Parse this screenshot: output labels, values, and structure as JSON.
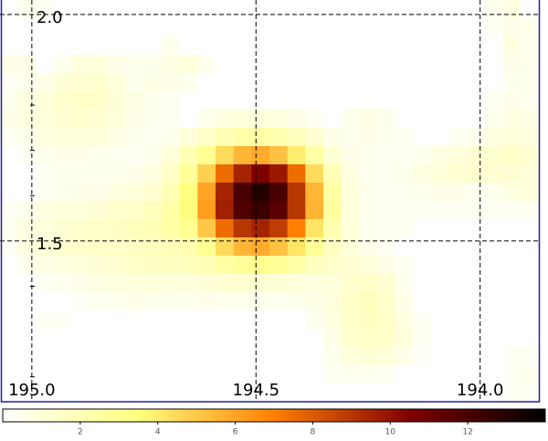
{
  "chart_data": {
    "type": "heatmap",
    "colormap": "afmhot_r",
    "clim": [
      0,
      14
    ],
    "xlim": [
      195.071,
      193.869
    ],
    "ylim": [
      2.032,
      1.145
    ],
    "xticks": [
      {
        "value": 195,
        "label": "195.0"
      },
      {
        "value": 194.5,
        "label": "194.5"
      },
      {
        "value": 194,
        "label": "194.0"
      }
    ],
    "yticks": [
      {
        "value": 2,
        "label": "2.0"
      },
      {
        "value": 1.5,
        "label": "1.5"
      }
    ],
    "yminorticks": [
      1.2,
      1.4,
      1.6,
      1.7,
      1.8
    ],
    "grid": true,
    "colorbar_ticks": [
      2,
      4,
      6,
      8,
      10,
      12
    ],
    "z": [
      [
        0,
        0.5,
        0.3,
        0,
        0,
        0,
        0,
        0,
        0,
        0,
        0,
        0,
        0,
        0,
        0,
        0,
        0,
        0,
        0,
        0,
        0,
        0,
        0,
        0,
        0,
        0,
        0,
        0.5,
        0.8,
        0
      ],
      [
        0,
        0,
        0,
        0,
        0,
        0,
        0,
        0,
        0,
        0,
        0,
        0,
        0,
        0,
        0,
        0,
        0,
        0,
        0,
        0,
        0,
        0,
        0,
        0,
        0,
        0,
        0,
        0.3,
        0.6,
        0.5
      ],
      [
        0,
        0,
        0,
        0,
        0,
        0,
        0,
        0,
        0,
        0.5,
        0,
        0,
        0,
        0,
        0,
        0,
        0,
        0,
        0,
        0,
        0,
        0,
        0,
        0,
        0,
        0,
        0,
        0,
        0.8,
        0.5
      ],
      [
        0.6,
        0.6,
        0,
        0.5,
        0.9,
        1,
        0.6,
        0.5,
        0.5,
        0.8,
        1,
        0.5,
        0,
        0,
        0,
        0,
        0,
        0,
        0,
        0,
        0,
        0,
        0,
        0,
        0,
        0,
        0,
        0,
        0.6,
        0.5
      ],
      [
        0.3,
        0.5,
        0.6,
        1.1,
        1.2,
        1.3,
        1,
        0.5,
        0.7,
        0.6,
        0.5,
        0,
        0,
        0,
        0,
        0,
        0,
        0,
        0,
        0,
        0,
        0,
        0,
        0,
        0,
        0,
        0,
        0,
        0.5,
        0.4
      ],
      [
        0.5,
        0.8,
        1,
        1.3,
        1.5,
        1.4,
        1.1,
        0.7,
        0.5,
        0.3,
        0,
        0,
        0,
        0,
        0,
        0,
        0,
        0,
        0,
        0,
        0,
        0,
        0,
        0,
        0,
        0,
        0,
        0.3,
        0.6,
        0.4
      ],
      [
        0.6,
        0.8,
        1,
        1.2,
        1.3,
        1.2,
        1,
        0.6,
        0.4,
        0.3,
        0,
        0.5,
        0.8,
        0.9,
        1,
        0.8,
        0.6,
        0.3,
        0,
        0.5,
        0.7,
        0.5,
        0,
        0,
        0,
        0,
        0,
        0.5,
        0.8,
        0.7
      ],
      [
        0.3,
        0.5,
        0.8,
        0.9,
        1,
        0.9,
        0.7,
        0.5,
        0.3,
        0.4,
        1,
        1.5,
        2,
        2.3,
        2.4,
        2.2,
        1.8,
        1.2,
        0.6,
        0.5,
        0.6,
        0.4,
        0.3,
        0,
        0,
        0.3,
        0.5,
        0.8,
        1,
        0.8
      ],
      [
        0,
        0.3,
        0.5,
        0.6,
        0.6,
        0.5,
        0.4,
        0.3,
        0.5,
        1,
        2,
        3,
        4.5,
        5.5,
        5.8,
        5.2,
        4,
        2.5,
        1.2,
        0.6,
        0.5,
        0.3,
        0.3,
        0.5,
        0.8,
        1,
        1.2,
        1.3,
        1.5,
        1.2
      ],
      [
        0,
        0,
        0.3,
        0.4,
        0.4,
        0.4,
        0.5,
        0.6,
        0.8,
        1.5,
        2.8,
        4.8,
        7.5,
        9.5,
        10.5,
        9.8,
        7.5,
        4.5,
        2,
        0.8,
        0.4,
        0.3,
        0.5,
        0.8,
        1,
        1.2,
        1.3,
        1.2,
        1.2,
        1
      ],
      [
        0,
        0,
        0.3,
        0.5,
        0.6,
        0.6,
        0.8,
        1,
        1.2,
        2,
        3.5,
        6,
        9.5,
        12,
        13,
        12,
        9,
        5.5,
        2.5,
        1,
        0.5,
        0.3,
        0.4,
        0.5,
        0.6,
        0.6,
        0.5,
        0.5,
        0.8,
        1
      ],
      [
        0.3,
        0.5,
        0.8,
        1,
        1,
        1.2,
        1.4,
        1.5,
        1.8,
        2.4,
        3.6,
        6.2,
        9.6,
        11.8,
        12.4,
        11.5,
        9,
        5.6,
        2.6,
        1,
        0.4,
        0.3,
        0.3,
        0.3,
        0.3,
        0.3,
        0.3,
        0.3,
        0.3,
        0.3
      ],
      [
        0.5,
        0.8,
        1,
        1.2,
        1.3,
        1.5,
        1.6,
        1.8,
        2,
        2.4,
        3,
        5,
        7.5,
        9,
        9.5,
        8.8,
        7,
        4.2,
        2.2,
        1,
        0.5,
        0.3,
        0.3,
        0,
        0,
        0,
        0,
        0,
        0,
        0
      ],
      [
        0.3,
        0.8,
        1.1,
        1.3,
        1.4,
        1.5,
        1.5,
        1.6,
        1.7,
        1.9,
        2.2,
        3,
        4.5,
        5.5,
        5.8,
        5.2,
        4.2,
        2.8,
        1.7,
        1,
        0.6,
        0.3,
        0,
        0,
        0,
        0,
        0,
        0,
        0,
        0
      ],
      [
        0,
        0.5,
        0.7,
        0.8,
        1,
        1.2,
        1.3,
        1.5,
        1.6,
        1.7,
        1.8,
        2,
        2.5,
        2.8,
        3,
        2.8,
        2.4,
        1.8,
        1.4,
        1.2,
        1,
        0.6,
        0.3,
        0,
        0,
        0,
        0,
        0,
        0,
        0
      ],
      [
        0,
        0,
        0.3,
        0.4,
        0.6,
        0.8,
        0.9,
        1,
        1,
        0.9,
        1,
        1.1,
        1.2,
        1.3,
        1.2,
        1.1,
        1,
        0.9,
        1,
        1.3,
        1.5,
        1.2,
        0.5,
        0,
        0,
        0,
        0,
        0,
        0,
        0
      ],
      [
        0,
        0,
        0,
        0,
        0.3,
        0.4,
        0.5,
        0.6,
        0.5,
        0.4,
        0.5,
        0.6,
        0.5,
        0.5,
        0.5,
        0.4,
        0.5,
        0.7,
        0.9,
        1.5,
        1.8,
        1.4,
        0.6,
        0,
        0,
        0,
        0,
        0,
        0,
        0
      ],
      [
        0,
        0,
        0.3,
        0.3,
        0,
        0,
        0,
        0,
        0,
        0,
        0,
        0,
        0,
        0,
        0,
        0,
        0,
        0.4,
        0.8,
        1.4,
        1.7,
        1.5,
        0.8,
        0.3,
        0,
        0,
        0,
        0,
        0,
        0
      ],
      [
        0,
        0,
        0,
        0,
        0,
        0,
        0,
        0,
        0,
        0,
        0,
        0,
        0,
        0,
        0,
        0,
        0,
        0,
        0.6,
        1.3,
        1.5,
        1.4,
        0.9,
        0.3,
        0,
        0,
        0,
        0,
        0,
        0
      ],
      [
        0,
        0,
        0,
        0,
        0,
        0,
        0,
        0,
        0,
        0,
        0,
        0,
        0,
        0,
        0,
        0,
        0,
        0,
        0.4,
        0.9,
        1.1,
        1,
        0.6,
        0.2,
        0,
        0,
        0,
        0,
        0.3,
        0.3
      ],
      [
        0,
        0,
        0,
        0,
        0,
        0,
        0,
        0,
        0,
        0,
        0,
        0,
        0,
        0,
        0,
        0,
        0,
        0,
        0.3,
        0.4,
        0.4,
        0.3,
        0,
        0,
        0,
        0,
        0,
        0,
        0.3,
        0.4
      ],
      [
        0,
        0,
        0,
        0,
        0,
        0,
        0,
        0,
        0,
        0,
        0,
        0,
        0,
        0,
        0,
        0,
        0,
        0,
        0,
        0,
        0,
        0,
        0,
        0,
        0,
        0,
        0,
        0,
        0.3,
        0.3
      ]
    ]
  }
}
